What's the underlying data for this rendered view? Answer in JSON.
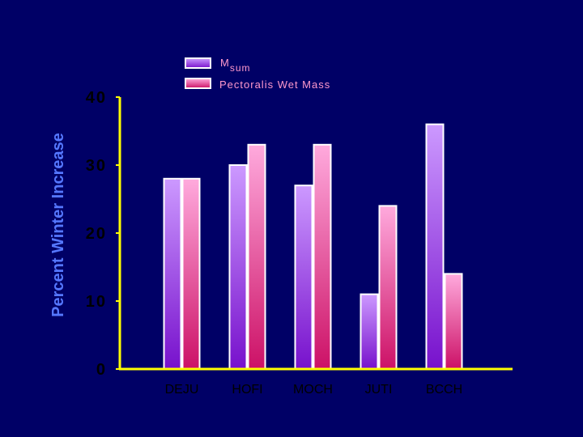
{
  "chart_data": {
    "type": "bar",
    "categories": [
      "DEJU",
      "HOFI",
      "MOCH",
      "JUTI",
      "BCCH"
    ],
    "series": [
      {
        "name": "Msum",
        "name_main": "M",
        "name_sub": "sum",
        "values": [
          28,
          30,
          27,
          11,
          36
        ],
        "color_top": "#cc99ff",
        "color_bottom": "#7711cc"
      },
      {
        "name": "Pectoralis Wet Mass",
        "values": [
          28,
          33,
          33,
          24,
          14
        ],
        "color_top": "#ffaadd",
        "color_bottom": "#cc1166"
      }
    ],
    "ylabel": "Percent Winter Increase",
    "yticks": [
      "0",
      "10",
      "20",
      "30",
      "40"
    ],
    "ylim": [
      0,
      40
    ],
    "axis_color": "#ffff00",
    "background": "#000066",
    "grid": false,
    "legend_position": "top-center"
  }
}
